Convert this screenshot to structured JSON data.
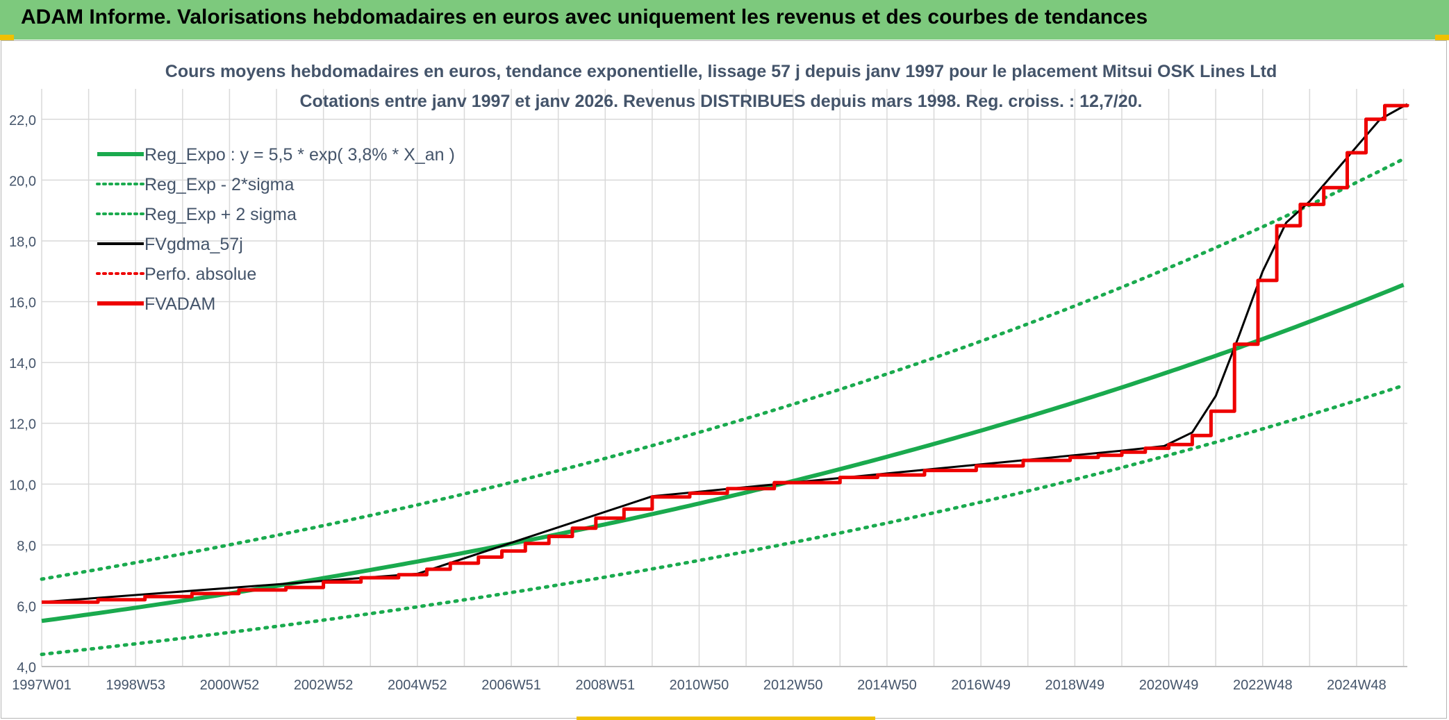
{
  "header": {
    "title": "ADAM Informe. Valorisations hebdomadaires en euros avec uniquement les revenus et des courbes de tendances"
  },
  "colors": {
    "banner": "#7dc97d",
    "accent": "#f0c000",
    "reg": "#1aaa4e",
    "fvgdma": "#000000",
    "fvadam": "#ee0000",
    "perfo": "#ee0000",
    "grid": "#d9d9d9",
    "text": "#44546a"
  },
  "chart_data": {
    "type": "line",
    "title": "Cours moyens hebdomadaires en euros, tendance exponentielle, lissage 57 j depuis janv 1997 pour le placement Mitsui OSK Lines Ltd",
    "subtitle": "Cotations entre janv 1997 et janv 2026. Revenus DISTRIBUES depuis mars 1998. Reg. croiss. : 12,7/20.",
    "x_range": [
      1997.0,
      2026.08
    ],
    "ylim": [
      4.0,
      23.0
    ],
    "yticks": [
      "4,0",
      "6,0",
      "8,0",
      "10,0",
      "12,0",
      "14,0",
      "16,0",
      "18,0",
      "20,0",
      "22,0"
    ],
    "ytick_values": [
      4,
      6,
      8,
      10,
      12,
      14,
      16,
      18,
      20,
      22
    ],
    "xticks": [
      "1997W01",
      "1998W53",
      "2000W52",
      "2002W52",
      "2004W52",
      "2006W51",
      "2008W51",
      "2010W50",
      "2012W50",
      "2014W50",
      "2016W49",
      "2018W49",
      "2020W49",
      "2022W48",
      "2024W48"
    ],
    "xtick_values": [
      1997.0,
      1999.0,
      2001.0,
      2003.0,
      2005.0,
      2007.0,
      2009.0,
      2011.0,
      2013.0,
      2015.0,
      2017.0,
      2019.0,
      2021.0,
      2023.0,
      2025.0
    ],
    "grid": true,
    "legend_position": "top-left",
    "legend": [
      {
        "label": "Reg_Expo : y = 5,5 * exp( 3,8% *  X_an )",
        "color": "#1aaa4e",
        "style": "solid"
      },
      {
        "label": "Reg_Exp - 2*sigma",
        "color": "#1aaa4e",
        "style": "dotted"
      },
      {
        "label": "Reg_Exp + 2 sigma",
        "color": "#1aaa4e",
        "style": "dotted"
      },
      {
        "label": "FVgdma_57j",
        "color": "#000000",
        "style": "solid"
      },
      {
        "label": "Perfo. absolue",
        "color": "#ee0000",
        "style": "dotted"
      },
      {
        "label": "FVADAM",
        "color": "#ee0000",
        "style": "solid"
      }
    ],
    "regression": {
      "base": 5.5,
      "rate": 0.038,
      "lower_factor": 0.8,
      "upper_factor": 1.25
    },
    "series": [
      {
        "name": "FVADAM",
        "x": [
          1997.0,
          1998.2,
          1999.2,
          2000.2,
          2001.2,
          2002.2,
          2003.0,
          2003.8,
          2004.6,
          2005.2,
          2005.7,
          2006.3,
          2006.8,
          2007.3,
          2007.8,
          2008.3,
          2008.8,
          2009.4,
          2010.0,
          2010.8,
          2011.6,
          2012.6,
          2014.0,
          2014.8,
          2015.8,
          2016.9,
          2017.9,
          2018.9,
          2019.5,
          2020.0,
          2020.5,
          2021.0,
          2021.5,
          2021.9,
          2022.4,
          2022.9,
          2023.3,
          2023.8,
          2024.3,
          2024.8,
          2025.2,
          2025.6,
          2026.08
        ],
        "y": [
          6.12,
          6.2,
          6.3,
          6.4,
          6.52,
          6.6,
          6.78,
          6.92,
          7.02,
          7.2,
          7.4,
          7.6,
          7.8,
          8.05,
          8.28,
          8.55,
          8.88,
          9.18,
          9.58,
          9.7,
          9.85,
          10.05,
          10.22,
          10.3,
          10.45,
          10.6,
          10.78,
          10.88,
          10.95,
          11.05,
          11.18,
          11.3,
          11.6,
          12.4,
          14.6,
          16.7,
          18.5,
          19.2,
          19.75,
          20.9,
          22.0,
          22.45,
          22.5
        ]
      },
      {
        "name": "FVgdma_57j",
        "x": [
          1997.0,
          2005.0,
          2010.0,
          2015.0,
          2020.0,
          2020.9,
          2021.5,
          2022.0,
          2022.5,
          2023.0,
          2023.5,
          2024.0,
          2024.5,
          2025.0,
          2025.5,
          2026.08
        ],
        "y": [
          6.12,
          7.05,
          9.6,
          10.35,
          11.1,
          11.25,
          11.7,
          12.9,
          14.9,
          17.0,
          18.6,
          19.3,
          20.2,
          21.1,
          22.0,
          22.5
        ]
      }
    ]
  }
}
